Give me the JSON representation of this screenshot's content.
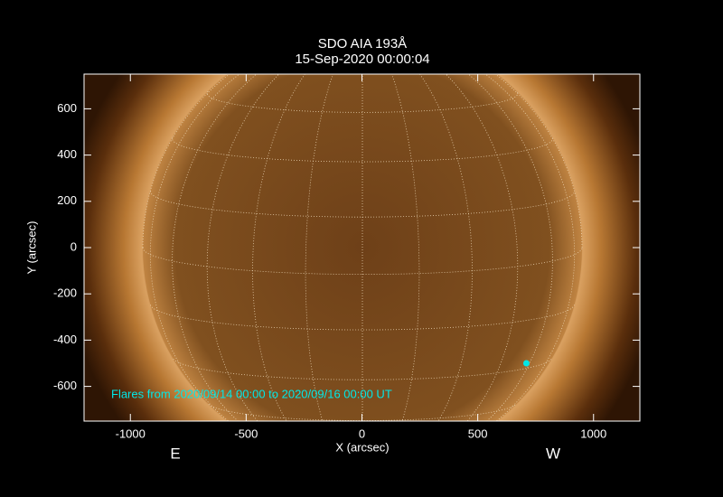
{
  "chart_data": {
    "type": "scatter",
    "title": "SDO AIA 193Å",
    "subtitle": "15-Sep-2020 00:00:04",
    "x_label": "X (arcsec)",
    "y_label": "Y (arcsec)",
    "x": [
      710
    ],
    "y": [
      -500
    ],
    "color": "#00e8e8",
    "xlim": [
      -1200,
      1200
    ],
    "ylim": [
      -750,
      750
    ],
    "xticks": [
      -1000,
      -500,
      0,
      500,
      1000
    ],
    "yticks": [
      -600,
      -400,
      -200,
      0,
      200,
      400,
      600
    ],
    "annotations": [
      "Flares from 2020/09/14 00:00 to 2020/09/16 00:00 UT",
      "E",
      "W"
    ]
  }
}
